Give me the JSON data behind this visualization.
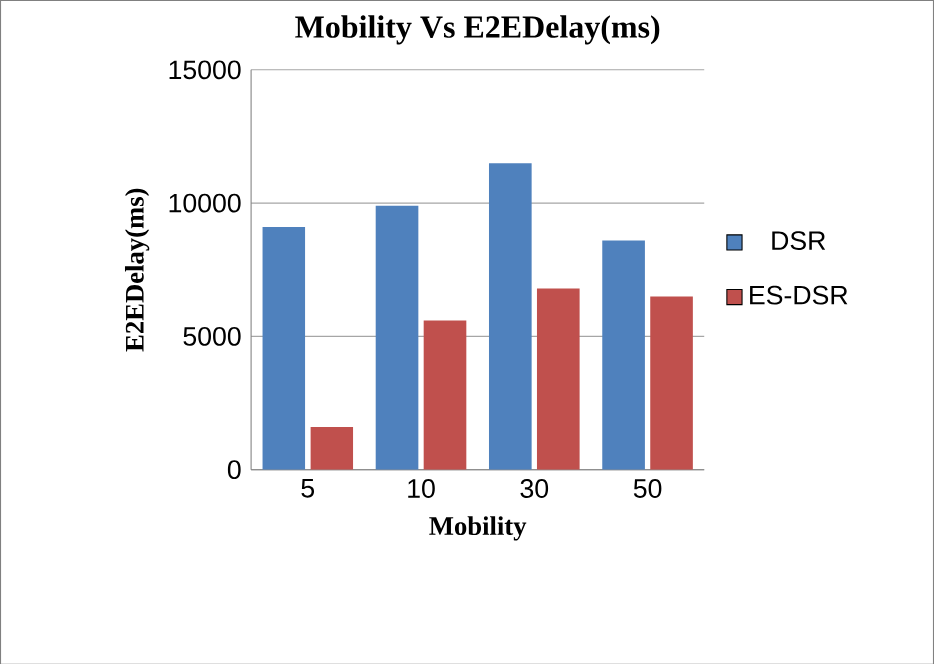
{
  "chart_data": {
    "type": "bar",
    "title": "Mobility Vs E2EDelay(ms)",
    "xlabel": "Mobility",
    "ylabel": "E2EDelay(ms)",
    "categories": [
      "5",
      "10",
      "30",
      "50"
    ],
    "series": [
      {
        "name": "DSR",
        "color": "#4f81bd",
        "values": [
          9100,
          9900,
          11500,
          8600
        ]
      },
      {
        "name": "ES-DSR",
        "color": "#c0504d",
        "values": [
          1600,
          5600,
          6800,
          6500
        ]
      }
    ],
    "ylim": [
      0,
      15000
    ],
    "yticks": [
      0,
      5000,
      10000,
      15000
    ],
    "grid": "y",
    "legend": "right"
  }
}
